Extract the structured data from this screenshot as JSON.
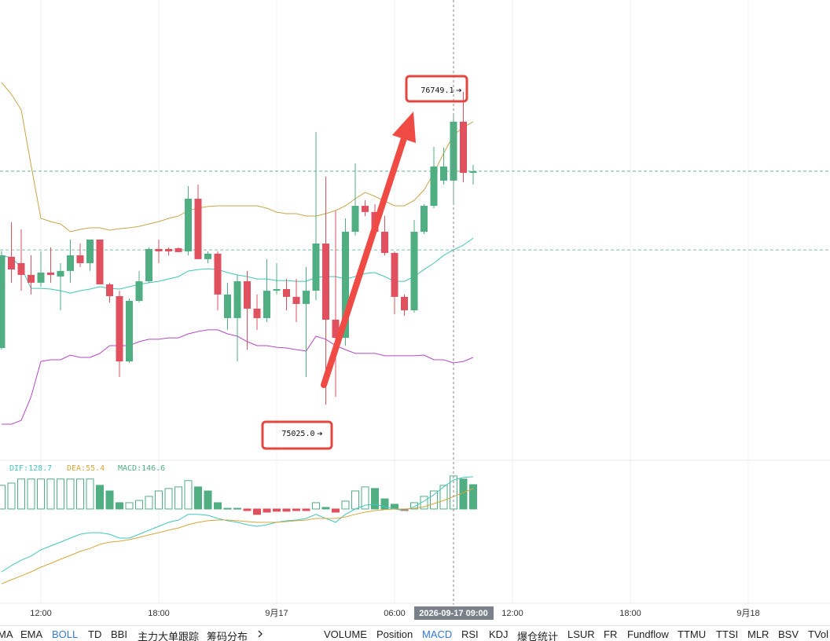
{
  "chart_data": [
    {
      "type": "candlestick",
      "x": [
        -14,
        -13.5,
        -13,
        -12.5,
        -12,
        -11.5,
        -11,
        -10.5,
        -10,
        -9.5,
        -9,
        -8.5,
        -8,
        -7.5,
        -7,
        -6.5,
        -6,
        -5.5,
        -5,
        -4.5,
        -4,
        -3.5,
        -3,
        -2.5,
        -2,
        -1.5,
        -1,
        -0.5,
        0,
        0.5,
        1,
        1.5,
        2,
        2.5,
        3,
        3.5,
        4,
        4.5,
        5,
        5.5,
        6,
        6.5,
        7,
        7.5,
        8,
        8.5,
        9,
        9.5,
        10
      ],
      "open": [
        75337,
        75840,
        75805,
        75740,
        75697,
        75753,
        75731,
        75762,
        75848,
        75805,
        75935,
        75688,
        75623,
        75263,
        75597,
        75705,
        75883,
        75883,
        75887,
        75870,
        76160,
        75827,
        75857,
        75502,
        75502,
        75705,
        75554,
        75502,
        75653,
        75662,
        75619,
        75580,
        75653,
        75913,
        75493,
        75393,
        75978,
        76121,
        76087,
        75978,
        75861,
        75619,
        75545,
        75978,
        76121,
        76260,
        76260,
        76585,
        76303
      ],
      "high": [
        75870,
        76030,
        75991,
        75848,
        75870,
        75892,
        75805,
        75935,
        75913,
        75935,
        75935,
        75697,
        75653,
        75610,
        75762,
        75892,
        75935,
        75892,
        75892,
        76230,
        76238,
        75870,
        75870,
        75697,
        75740,
        75762,
        75632,
        75827,
        75805,
        75718,
        75718,
        75783,
        76528,
        76282,
        76095,
        76052,
        76355,
        76152,
        76130,
        76065,
        75870,
        75632,
        76043,
        76130,
        76446,
        76442,
        76628,
        76749.1,
        76347
      ],
      "low": [
        75328,
        75697,
        75653,
        75632,
        75675,
        75697,
        75545,
        75697,
        75783,
        75762,
        75688,
        75588,
        75177,
        75255,
        75588,
        75697,
        75805,
        75848,
        75866,
        75848,
        75827,
        75805,
        75545,
        75437,
        75263,
        75328,
        75437,
        75480,
        75632,
        75545,
        75480,
        75177,
        75601,
        75025.0,
        75068,
        75350,
        75957,
        76065,
        75957,
        75848,
        75523,
        75515,
        75532,
        75965,
        76108,
        76238,
        76139,
        76251,
        76238
      ],
      "close": [
        75848,
        75770,
        75740,
        75697,
        75753,
        75740,
        75762,
        75848,
        75805,
        75935,
        75688,
        75623,
        75263,
        75597,
        75705,
        75883,
        75870,
        75870,
        75866,
        76160,
        75827,
        75857,
        75632,
        75632,
        75705,
        75554,
        75502,
        75653,
        75662,
        75619,
        75580,
        75653,
        75913,
        75493,
        75393,
        75978,
        76121,
        76087,
        75978,
        75861,
        75619,
        75545,
        75978,
        76121,
        76338,
        76338,
        76585,
        76303,
        76312
      ],
      "up_color": "#4fae82",
      "down_color": "#e0505f",
      "series": [
        {
          "color": "#c9a64a",
          "values": [
            76801,
            76736,
            76650,
            76346,
            76052,
            76034,
            76021,
            75978,
            75991,
            76000,
            76000,
            75987,
            75995,
            76000,
            76008,
            76021,
            76034,
            76052,
            76065,
            76095,
            76108,
            76117,
            76121,
            76121,
            76121,
            76121,
            76121,
            76108,
            76086,
            76078,
            76078,
            76065,
            76065,
            76078,
            76095,
            76121,
            76160,
            76195,
            76173,
            76147,
            76121,
            76121,
            76151,
            76208,
            76303,
            76411,
            76511,
            76554,
            76585
          ]
        },
        {
          "color": "#3fc7b4",
          "values": [
            75848,
            75835,
            75783,
            75666,
            75666,
            75662,
            75653,
            75640,
            75653,
            75662,
            75675,
            75666,
            75662,
            75675,
            75688,
            75697,
            75705,
            75718,
            75731,
            75761,
            75770,
            75774,
            75770,
            75753,
            75740,
            75731,
            75718,
            75718,
            75709,
            75709,
            75705,
            75705,
            75727,
            75731,
            75731,
            75718,
            75731,
            75748,
            75753,
            75731,
            75705,
            75705,
            75731,
            75770,
            75805,
            75848,
            75878,
            75904,
            75943
          ]
        },
        {
          "color": "#b548c6",
          "values": [
            74917,
            74917,
            74938,
            75068,
            75263,
            75272,
            75272,
            75298,
            75285,
            75285,
            75307,
            75350,
            75350,
            75350,
            75372,
            75385,
            75385,
            75393,
            75393,
            75415,
            75428,
            75437,
            75437,
            75415,
            75402,
            75372,
            75350,
            75350,
            75341,
            75337,
            75328,
            75320,
            75402,
            75385,
            75350,
            75328,
            75307,
            75307,
            75307,
            75294,
            75294,
            75294,
            75294,
            75298,
            75272,
            75272,
            75255,
            75263,
            75285
          ]
        }
      ],
      "price_lines": [
        76312,
        75878
      ],
      "annotations": [
        {
          "x": 9.5,
          "value": 76749.1,
          "label": "76749.1"
        },
        {
          "x": 2.5,
          "value": 75025.0,
          "label": "75025.0"
        }
      ],
      "xlim": [
        -14.08,
        28.16
      ],
      "ylim": [
        74722,
        77256
      ],
      "xticks": [
        {
          "value": -12,
          "label": "12:00"
        },
        {
          "value": -6,
          "label": "18:00"
        },
        {
          "value": 0,
          "label": "9月17"
        },
        {
          "value": 6,
          "label": "06:00"
        },
        {
          "value": 12,
          "label": "12:00"
        },
        {
          "value": 18,
          "label": "18:00"
        },
        {
          "value": 24,
          "label": "9月18"
        }
      ],
      "crosshair": {
        "x": 9,
        "label": "2026-09-17 09:00"
      }
    },
    {
      "type": "macd",
      "histogram": [
        105,
        115,
        133,
        133,
        133,
        133,
        133,
        133,
        133,
        133,
        105,
        80,
        28,
        28,
        38,
        56,
        80,
        91,
        98,
        126,
        98,
        80,
        28,
        3,
        3,
        -7,
        -24,
        -14,
        -10,
        -10,
        -7,
        -7,
        28,
        7,
        -14,
        35,
        80,
        98,
        91,
        45,
        21,
        -7,
        28,
        56,
        80,
        105,
        146.6,
        133,
        108
      ],
      "up_color": "#4fae82",
      "down_color": "#e0505f",
      "series": [
        {
          "color": "#43c6c0",
          "values": [
            -279,
            -251,
            -227,
            -209,
            -181,
            -164,
            -147,
            -129,
            -112,
            -105,
            -105,
            -112,
            -129,
            -129,
            -112,
            -94,
            -77,
            -59,
            -49,
            -24,
            -24,
            -28,
            -42,
            -52,
            -59,
            -70,
            -77,
            -70,
            -59,
            -52,
            -49,
            -42,
            -24,
            -42,
            -59,
            -24,
            0,
            17,
            21,
            10,
            0,
            -7,
            10,
            35,
            63,
            98,
            128.7,
            140,
            143
          ]
        },
        {
          "color": "#d6a73c",
          "values": [
            -332,
            -314,
            -297,
            -279,
            -258,
            -241,
            -223,
            -206,
            -188,
            -175,
            -157,
            -147,
            -143,
            -136,
            -126,
            -115,
            -105,
            -94,
            -84,
            -70,
            -59,
            -52,
            -49,
            -49,
            -52,
            -56,
            -59,
            -59,
            -59,
            -56,
            -52,
            -49,
            -42,
            -42,
            -42,
            -35,
            -24,
            -14,
            -7,
            -3,
            0,
            0,
            3,
            10,
            24,
            38,
            55.4,
            73,
            91
          ]
        }
      ],
      "readouts": [
        {
          "value": 128.7,
          "label": "DIF:128.7",
          "color": "#43c6c0"
        },
        {
          "value": 55.4,
          "label": "DEA:55.4",
          "color": "#d6a73c"
        },
        {
          "value": 146.6,
          "label": "MACD:146.6",
          "color": "#4fae82"
        }
      ],
      "ylim": [
        -408,
        209
      ]
    }
  ],
  "toolbar": {
    "left": [
      {
        "label": "MA"
      },
      {
        "label": "EMA"
      },
      {
        "label": "BOLL",
        "active": true
      },
      {
        "label": "TD"
      },
      {
        "label": "BBI"
      },
      {
        "label": "主力大单跟踪"
      },
      {
        "label": "筹码分布"
      }
    ],
    "right": [
      {
        "label": "VOLUME"
      },
      {
        "label": "Position"
      },
      {
        "label": "MACD",
        "active": true
      },
      {
        "label": "RSI"
      },
      {
        "label": "KDJ"
      },
      {
        "label": "爆仓统计"
      },
      {
        "label": "LSUR"
      },
      {
        "label": "FR"
      },
      {
        "label": "Fundflow"
      },
      {
        "label": "TTMU"
      },
      {
        "label": "TTSI"
      },
      {
        "label": "MLR"
      },
      {
        "label": "BSV"
      },
      {
        "label": "TVol"
      }
    ]
  }
}
